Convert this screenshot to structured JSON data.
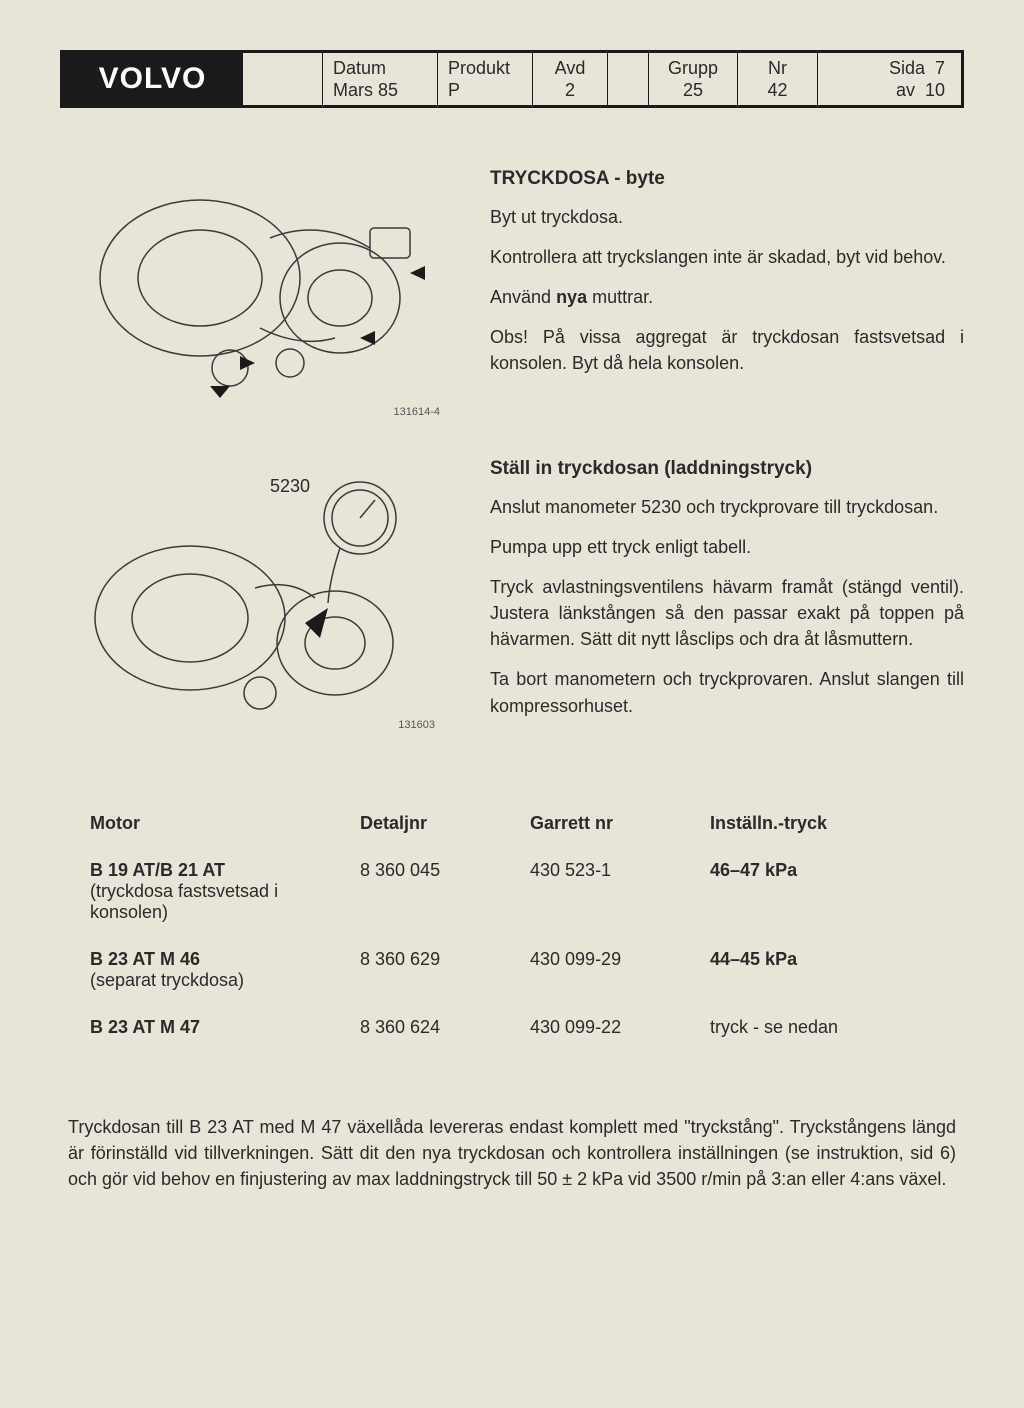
{
  "header": {
    "logo": "VOLVO",
    "datum_label": "Datum",
    "datum_value": "Mars 85",
    "produkt_label": "Produkt",
    "produkt_value": "P",
    "avd_label": "Avd",
    "avd_value": "2",
    "grupp_label": "Grupp",
    "grupp_value": "25",
    "nr_label": "Nr",
    "nr_value": "42",
    "sida_label": "Sida",
    "sida_page": "7",
    "sida_of_label": "av",
    "sida_total": "10"
  },
  "section1": {
    "title": "TRYCKDOSA - byte",
    "p1": "Byt ut tryckdosa.",
    "p2": "Kontrollera att tryckslangen inte är skadad, byt vid behov.",
    "p3a": "Använd ",
    "p3b_bold": "nya",
    "p3c": " muttrar.",
    "p4": "Obs! På vissa aggregat är tryckdosan fastsvetsad i konsolen. Byt då hela konsolen.",
    "fignum": "131614-4"
  },
  "section2": {
    "title": "Ställ in tryckdosan (laddningstryck)",
    "p1": "Anslut manometer 5230 och tryckprovare till tryckdosan.",
    "p2": "Pumpa upp ett tryck enligt tabell.",
    "p3": "Tryck avlastningsventilens hävarm framåt (stängd ventil). Justera länkstången så den passar exakt på toppen på hävarmen. Sätt dit nytt låsclips och dra åt låsmuttern.",
    "p4": "Ta bort manometern och tryckprovaren. Anslut slangen till kompressorhuset.",
    "gauge_label": "5230",
    "fignum": "131603"
  },
  "table": {
    "head": {
      "motor": "Motor",
      "detalj": "Detaljnr",
      "garrett": "Garrett nr",
      "install": "Inställn.-tryck"
    },
    "rows": [
      {
        "motor_main": "B 19 AT/B 21 AT",
        "motor_sub": "(tryckdosa fastsvetsad i konsolen)",
        "detalj": "8 360 045",
        "garrett": "430 523-1",
        "install": "46–47 kPa",
        "install_bold": true
      },
      {
        "motor_main": "B 23 AT M 46",
        "motor_sub": "(separat tryckdosa)",
        "detalj": "8 360 629",
        "garrett": "430 099-29",
        "install": "44–45 kPa",
        "install_bold": true
      },
      {
        "motor_main": "B 23 AT M 47",
        "motor_sub": "",
        "detalj": "8 360 624",
        "garrett": "430 099-22",
        "install": "tryck - se nedan",
        "install_bold": false
      }
    ]
  },
  "footer": "Tryckdosan till B 23 AT med M 47 växellåda levereras endast komplett med \"tryckstång\". Tryckstångens längd är förinställd vid tillverkningen. Sätt dit den nya tryckdosan och kontrollera inställningen (se instruktion, sid 6) och gör vid behov en finjustering av max laddningstryck till 50 ± 2 kPa vid 3500 r/min på 3:an eller 4:ans växel.",
  "colors": {
    "page_bg": "#e8e4d8",
    "ink": "#2a2a2a",
    "logo_bg": "#1a1a1a",
    "logo_fg": "#ffffff",
    "stroke": "#3a3a3a"
  }
}
